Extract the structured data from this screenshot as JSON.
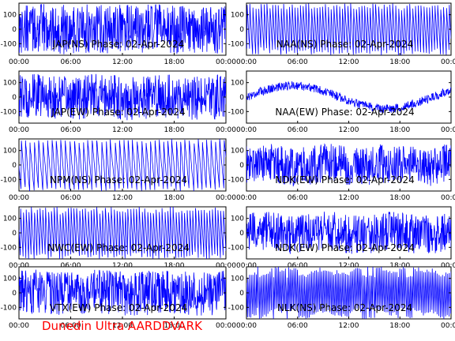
{
  "watermark": "Dunedin Ultra AARDDVARK",
  "chart_data": [
    {
      "type": "line",
      "title": "JAP(NS) Phase: 02-Apr-2024",
      "x_ticks": [
        "00:00",
        "06:00",
        "12:00",
        "18:00",
        "00:00"
      ],
      "y_ticks": [
        "100",
        "0",
        "-100"
      ],
      "ylim": [
        -180,
        180
      ],
      "series_color": "#0000ff",
      "pattern": "noise",
      "density": 0.95
    },
    {
      "type": "line",
      "title": "NAA(NS) Phase: 02-Apr-2024",
      "x_ticks": [
        "00:00",
        "06:00",
        "12:00",
        "18:00",
        "00:00"
      ],
      "y_ticks": [
        "100",
        "0",
        "-100"
      ],
      "ylim": [
        -180,
        180
      ],
      "series_color": "#0000ff",
      "pattern": "sawtooth",
      "density": 0.3
    },
    {
      "type": "line",
      "title": "JAP(EW) Phase: 02-Apr-2024",
      "x_ticks": [
        "00:00",
        "06:00",
        "12:00",
        "18:00",
        "00:00"
      ],
      "y_ticks": [
        "100",
        "0",
        "-100"
      ],
      "ylim": [
        -180,
        180
      ],
      "series_color": "#0000ff",
      "pattern": "noise",
      "density": 0.85
    },
    {
      "type": "line",
      "title": "NAA(EW) Phase: 02-Apr-2024",
      "x_ticks": [
        "00:00",
        "06:00",
        "12:00",
        "18:00",
        "00:00"
      ],
      "y_ticks": [
        "100",
        "0",
        "-100"
      ],
      "ylim": [
        -180,
        180
      ],
      "series_color": "#0000ff",
      "pattern": "wave",
      "density": 0.5
    },
    {
      "type": "line",
      "title": "NPM(NS) Phase: 02-Apr-2024",
      "x_ticks": [
        "00:00",
        "06:00",
        "12:00",
        "18:00",
        "00:00"
      ],
      "y_ticks": [
        "100",
        "0",
        "-100"
      ],
      "ylim": [
        -180,
        180
      ],
      "series_color": "#0000ff",
      "pattern": "sawtooth-slow",
      "density": 0.25
    },
    {
      "type": "line",
      "title": "NDK(EW) Phase: 02-Apr-2024",
      "x_ticks": [
        "00:00",
        "06:00",
        "12:00",
        "18:00",
        "00:00"
      ],
      "y_ticks": [
        "100",
        "0",
        "-100"
      ],
      "ylim": [
        -180,
        180
      ],
      "series_color": "#0000ff",
      "pattern": "noise",
      "density": 0.75
    },
    {
      "type": "line",
      "title": "NWC(EW) Phase: 02-Apr-2024",
      "x_ticks": [
        "00:00",
        "06:00",
        "12:00",
        "18:00",
        "00:00"
      ],
      "y_ticks": [
        "100",
        "0",
        "-100"
      ],
      "ylim": [
        -180,
        180
      ],
      "series_color": "#0000ff",
      "pattern": "sawtooth",
      "density": 0.4
    },
    {
      "type": "line",
      "title": "NDK(EW) Phase: 02-Apr-2024",
      "x_ticks": [
        "00:00",
        "06:00",
        "12:00",
        "18:00",
        "00:00"
      ],
      "y_ticks": [
        "100",
        "0",
        "-100"
      ],
      "ylim": [
        -180,
        180
      ],
      "series_color": "#0000ff",
      "pattern": "noise",
      "density": 0.75
    },
    {
      "type": "line",
      "title": "VTX(EW) Phase: 02-Apr-2024",
      "x_ticks": [
        "00:00",
        "06:00",
        "12:00",
        "18:00",
        "00:00"
      ],
      "y_ticks": [
        "100",
        "0",
        "-100"
      ],
      "ylim": [
        -180,
        180
      ],
      "series_color": "#0000ff",
      "pattern": "noise",
      "density": 0.85
    },
    {
      "type": "line",
      "title": "NLK(NS) Phase: 02-Apr-2024",
      "x_ticks": [
        "00:00",
        "06:00",
        "12:00",
        "18:00",
        "00:00"
      ],
      "y_ticks": [
        "100",
        "0",
        "-100"
      ],
      "ylim": [
        -180,
        180
      ],
      "series_color": "#0000ff",
      "pattern": "sawtooth-fast",
      "density": 0.5
    }
  ]
}
